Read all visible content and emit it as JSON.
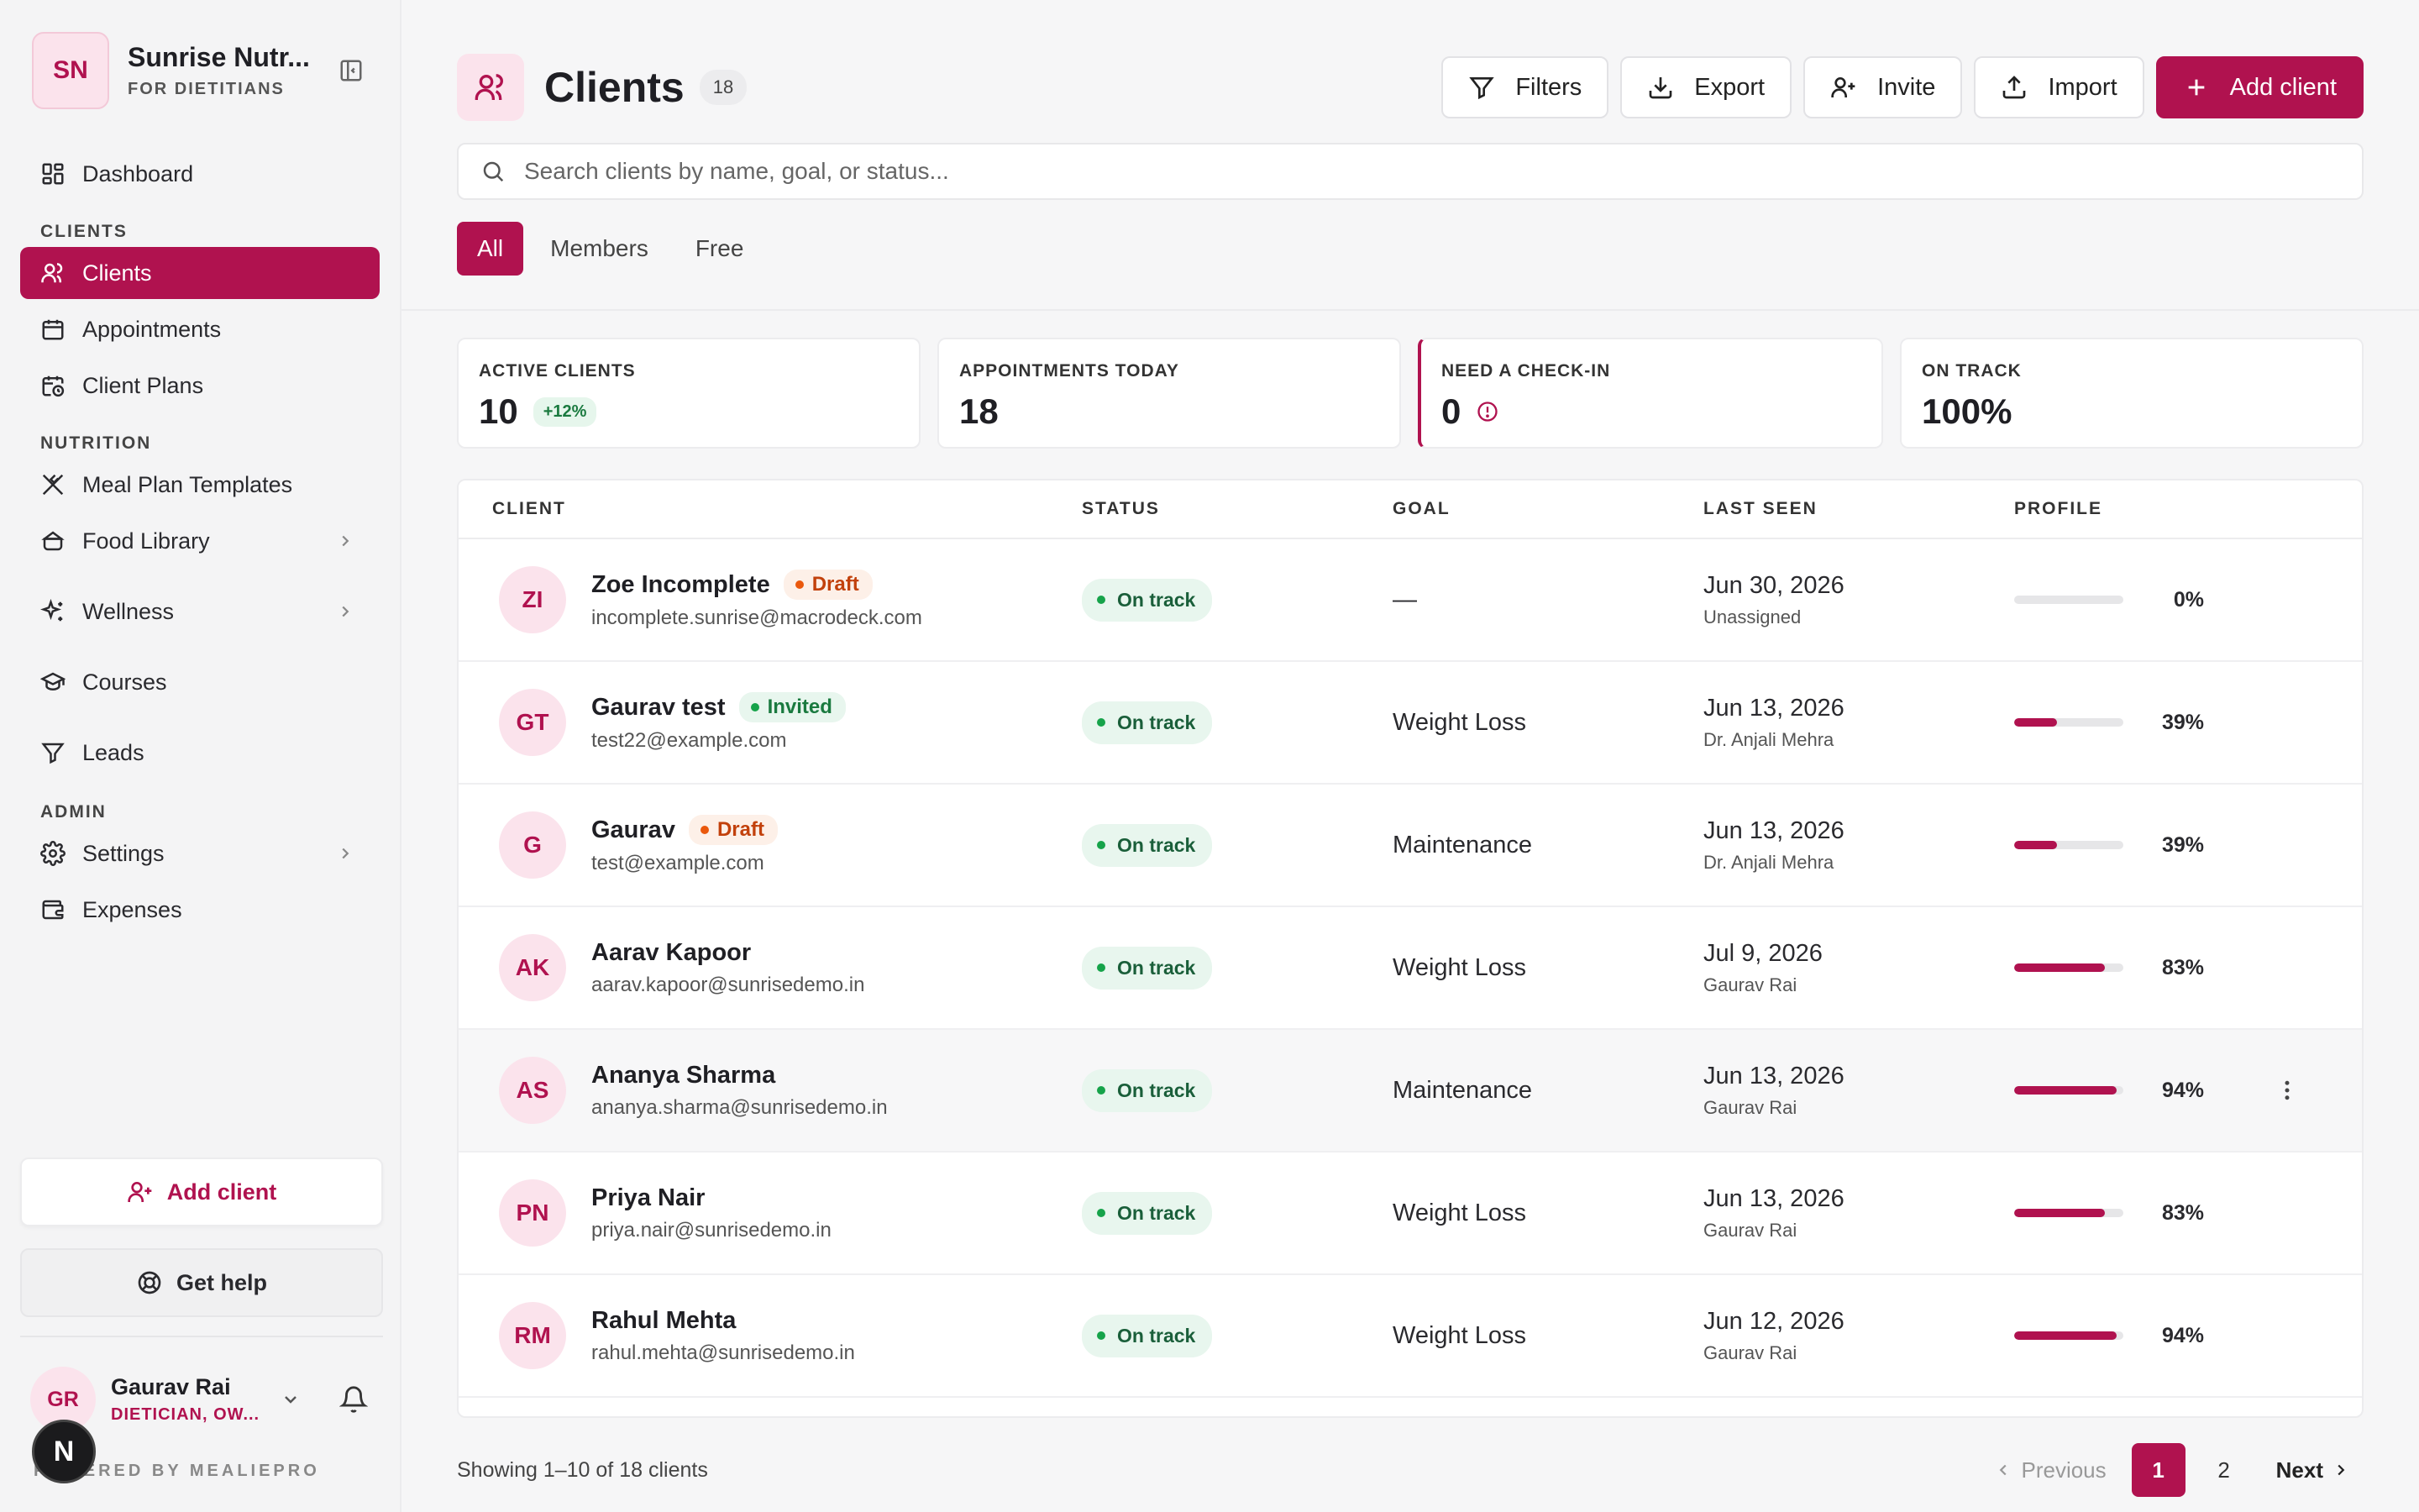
{
  "brand": {
    "initials": "SN",
    "name": "Sunrise Nutr...",
    "subtitle": "FOR DIETITIANS"
  },
  "sidebar": {
    "dashboard": "Dashboard",
    "section_clients": "CLIENTS",
    "clients": "Clients",
    "appointments": "Appointments",
    "client_plans": "Client Plans",
    "section_nutrition": "NUTRITION",
    "meal_plan_templates": "Meal Plan Templates",
    "food_library": "Food Library",
    "wellness": "Wellness",
    "courses": "Courses",
    "leads": "Leads",
    "section_admin": "ADMIN",
    "settings": "Settings",
    "expenses": "Expenses",
    "add_client": "Add client",
    "get_help": "Get help",
    "powered_by": "POWERED BY MEALIEPRO"
  },
  "user": {
    "initials": "GR",
    "name": "Gaurav Rai",
    "role": "DIETICIAN, OW...",
    "badge": "N"
  },
  "header": {
    "title": "Clients",
    "count": "18",
    "filters": "Filters",
    "export": "Export",
    "invite": "Invite",
    "import": "Import",
    "add_client": "Add client"
  },
  "search": {
    "placeholder": "Search clients by name, goal, or status..."
  },
  "tabs": {
    "all": "All",
    "members": "Members",
    "free": "Free"
  },
  "stats": {
    "active_label": "ACTIVE CLIENTS",
    "active_value": "10",
    "active_delta": "+12%",
    "appointments_label": "APPOINTMENTS TODAY",
    "appointments_value": "18",
    "checkin_label": "NEED A CHECK-IN",
    "checkin_value": "0",
    "ontrack_label": "ON TRACK",
    "ontrack_value": "100%"
  },
  "table": {
    "columns": {
      "client": "CLIENT",
      "status": "STATUS",
      "goal": "GOAL",
      "last_seen": "LAST SEEN",
      "profile": "PROFILE"
    },
    "rows": [
      {
        "initials": "ZI",
        "name": "Zoe Incomplete",
        "tag": "Draft",
        "tag_type": "draft",
        "email": "incomplete.sunrise@macrodeck.com",
        "status": "On track",
        "goal": "—",
        "date": "Jun 30, 2026",
        "by": "Unassigned",
        "profile": 0,
        "profile_label": "0%"
      },
      {
        "initials": "GT",
        "name": "Gaurav test",
        "tag": "Invited",
        "tag_type": "invited",
        "email": "test22@example.com",
        "status": "On track",
        "goal": "Weight Loss",
        "date": "Jun 13, 2026",
        "by": "Dr. Anjali Mehra",
        "profile": 39,
        "profile_label": "39%"
      },
      {
        "initials": "G",
        "name": "Gaurav",
        "tag": "Draft",
        "tag_type": "draft",
        "email": "test@example.com",
        "status": "On track",
        "goal": "Maintenance",
        "date": "Jun 13, 2026",
        "by": "Dr. Anjali Mehra",
        "profile": 39,
        "profile_label": "39%"
      },
      {
        "initials": "AK",
        "name": "Aarav Kapoor",
        "tag": "",
        "tag_type": "",
        "email": "aarav.kapoor@sunrisedemo.in",
        "status": "On track",
        "goal": "Weight Loss",
        "date": "Jul 9, 2026",
        "by": "Gaurav Rai",
        "profile": 83,
        "profile_label": "83%"
      },
      {
        "initials": "AS",
        "name": "Ananya Sharma",
        "tag": "",
        "tag_type": "",
        "email": "ananya.sharma@sunrisedemo.in",
        "status": "On track",
        "goal": "Maintenance",
        "date": "Jun 13, 2026",
        "by": "Gaurav Rai",
        "profile": 94,
        "profile_label": "94%"
      },
      {
        "initials": "PN",
        "name": "Priya Nair",
        "tag": "",
        "tag_type": "",
        "email": "priya.nair@sunrisedemo.in",
        "status": "On track",
        "goal": "Weight Loss",
        "date": "Jun 13, 2026",
        "by": "Gaurav Rai",
        "profile": 83,
        "profile_label": "83%"
      },
      {
        "initials": "RM",
        "name": "Rahul Mehta",
        "tag": "",
        "tag_type": "",
        "email": "rahul.mehta@sunrisedemo.in",
        "status": "On track",
        "goal": "Weight Loss",
        "date": "Jun 12, 2026",
        "by": "Gaurav Rai",
        "profile": 94,
        "profile_label": "94%"
      }
    ]
  },
  "footer": {
    "showing": "Showing 1–10 of 18 clients",
    "previous": "Previous",
    "page1": "1",
    "page2": "2",
    "next": "Next"
  },
  "colors": {
    "accent": "#b0124f",
    "accent_soft": "#fbe3ec",
    "success": "#16a34a",
    "draft": "#ea580c"
  }
}
